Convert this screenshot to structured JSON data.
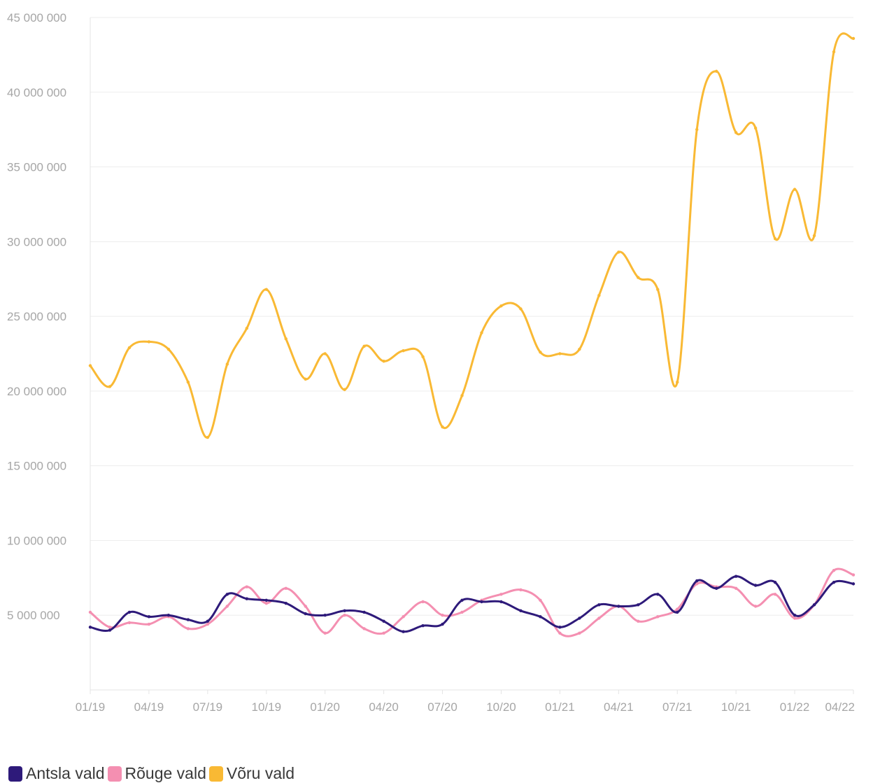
{
  "chart_data": {
    "type": "line",
    "title": "",
    "xlabel": "",
    "ylabel": "",
    "x": [
      "01/19",
      "02/19",
      "03/19",
      "04/19",
      "05/19",
      "06/19",
      "07/19",
      "08/19",
      "09/19",
      "10/19",
      "11/19",
      "12/19",
      "01/20",
      "02/20",
      "03/20",
      "04/20",
      "05/20",
      "06/20",
      "07/20",
      "08/20",
      "09/20",
      "10/20",
      "11/20",
      "12/20",
      "01/21",
      "02/21",
      "03/21",
      "04/21",
      "05/21",
      "06/21",
      "07/21",
      "08/21",
      "09/21",
      "10/21",
      "11/21",
      "12/21",
      "01/22",
      "02/22",
      "03/22",
      "04/22"
    ],
    "x_tick_labels": [
      "01/19",
      "04/19",
      "07/19",
      "10/19",
      "01/20",
      "04/20",
      "07/20",
      "10/20",
      "01/21",
      "04/21",
      "07/21",
      "10/21",
      "01/22",
      "04/22"
    ],
    "y_tick_labels": [
      "5 000 000",
      "10 000 000",
      "15 000 000",
      "20 000 000",
      "25 000 000",
      "30 000 000",
      "35 000 000",
      "40 000 000",
      "45 000 000"
    ],
    "ylim": [
      0,
      45000000
    ],
    "grid": true,
    "legend_position": "bottom-left",
    "series": [
      {
        "name": "Antsla vald",
        "color": "#2e1a7a",
        "values": [
          4200000,
          4000000,
          5200000,
          4900000,
          5000000,
          4700000,
          4600000,
          6400000,
          6100000,
          6000000,
          5800000,
          5100000,
          5000000,
          5300000,
          5200000,
          4600000,
          3900000,
          4300000,
          4400000,
          6000000,
          5900000,
          5900000,
          5300000,
          4900000,
          4200000,
          4800000,
          5700000,
          5600000,
          5700000,
          6400000,
          5200000,
          7300000,
          6800000,
          7600000,
          7000000,
          7200000,
          5000000,
          5700000,
          7200000,
          7100000
        ]
      },
      {
        "name": "Rõuge vald",
        "color": "#f48fb1",
        "values": [
          5200000,
          4200000,
          4500000,
          4400000,
          4900000,
          4100000,
          4400000,
          5600000,
          6900000,
          5800000,
          6800000,
          5600000,
          3800000,
          5000000,
          4100000,
          3800000,
          4900000,
          5900000,
          5000000,
          5200000,
          6000000,
          6400000,
          6700000,
          6000000,
          3800000,
          3800000,
          4800000,
          5600000,
          4600000,
          4900000,
          5400000,
          7100000,
          6900000,
          6800000,
          5600000,
          6400000,
          4800000,
          5700000,
          8000000,
          7700000
        ]
      },
      {
        "name": "Võru vald",
        "color": "#f9b934",
        "values": [
          21700000,
          20300000,
          22900000,
          23300000,
          22800000,
          20600000,
          16900000,
          21800000,
          24200000,
          26800000,
          23500000,
          20800000,
          22500000,
          20100000,
          23000000,
          22000000,
          22700000,
          22300000,
          17600000,
          19700000,
          23900000,
          25700000,
          25500000,
          22600000,
          22500000,
          22800000,
          26400000,
          29300000,
          27600000,
          26800000,
          20600000,
          37500000,
          41400000,
          37300000,
          37600000,
          30200000,
          33500000,
          30400000,
          42700000,
          43600000
        ]
      }
    ]
  }
}
